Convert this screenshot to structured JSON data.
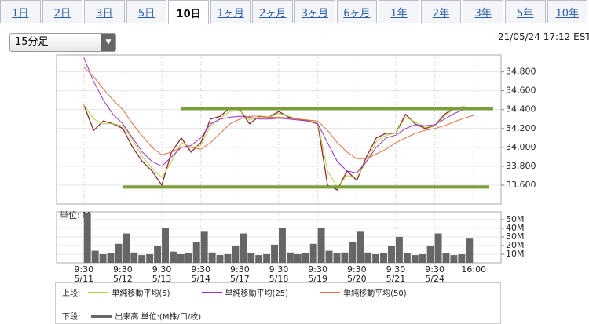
{
  "tabs": [
    "1日",
    "2日",
    "3日",
    "5日",
    "10日",
    "1ヶ月",
    "2ヶ月",
    "3ヶ月",
    "6ヶ月",
    "1年",
    "2年",
    "3年",
    "5年",
    "10年"
  ],
  "selected_tab": 4,
  "interval_select": "15分足",
  "timestamp": "21/05/24 17:12 EST",
  "legend": {
    "upper_label": "上段:",
    "lower_label": "下段:"
  },
  "chart_data": [
    {
      "type": "line",
      "x": [
        0,
        0.25,
        0.5,
        0.75,
        1,
        1.25,
        1.5,
        1.75,
        2,
        2.25,
        2.5,
        2.75,
        3,
        3.25,
        3.5,
        3.75,
        4,
        4.25,
        4.5,
        4.75,
        5,
        5.25,
        5.5,
        5.75,
        6,
        6.25,
        6.5,
        6.75,
        7,
        7.25,
        7.5,
        7.75,
        8,
        8.25,
        8.5,
        8.75,
        9,
        9.25,
        9.5,
        9.75,
        10
      ],
      "series": [
        {
          "color": "#8a2a2a",
          "values": [
            34450,
            34180,
            34280,
            34250,
            34200,
            34000,
            33850,
            33750,
            33600,
            33950,
            34100,
            33950,
            34050,
            34300,
            34330,
            34420,
            34400,
            34250,
            34330,
            34320,
            34380,
            34320,
            34300,
            34280,
            34250,
            33600,
            33550,
            33750,
            33650,
            33900,
            34100,
            34150,
            34150,
            34350,
            34250,
            34200,
            34230,
            34350,
            34420,
            34430,
            34400
          ]
        },
        {
          "name": "単純移動平均(5)",
          "color": "#b8d040",
          "values": [
            34450,
            34300,
            34250,
            34250,
            34230,
            34080,
            33900,
            33780,
            33680,
            33850,
            34050,
            34000,
            34020,
            34230,
            34310,
            34380,
            34390,
            34290,
            34320,
            34320,
            34360,
            34330,
            34300,
            34290,
            34260,
            33750,
            33580,
            33700,
            33680,
            33850,
            34060,
            34130,
            34150,
            34320,
            34270,
            34210,
            34230,
            34330,
            34410,
            34430,
            34410
          ]
        },
        {
          "name": "単純移動平均(25)",
          "color": "#9933cc",
          "values": [
            34950,
            34700,
            34500,
            34350,
            34250,
            34100,
            33950,
            33850,
            33800,
            33900,
            34000,
            34020,
            34100,
            34250,
            34300,
            34320,
            34330,
            34320,
            34300,
            34300,
            34310,
            34300,
            34290,
            34280,
            34250,
            34050,
            33850,
            33750,
            33730,
            33850,
            34000,
            34100,
            34130,
            34200,
            34240,
            34230,
            34240,
            34300,
            34360,
            34400,
            34410
          ]
        },
        {
          "name": "単純移動平均(50)",
          "color": "#e07040",
          "values": [
            34850,
            34750,
            34620,
            34500,
            34400,
            34250,
            34120,
            34000,
            33920,
            33950,
            34000,
            34000,
            33980,
            34050,
            34150,
            34250,
            34300,
            34330,
            34330,
            34320,
            34320,
            34310,
            34300,
            34290,
            34280,
            34180,
            34050,
            33950,
            33880,
            33880,
            33930,
            33980,
            34050,
            34100,
            34150,
            34180,
            34200,
            34230,
            34270,
            34310,
            34340
          ]
        }
      ],
      "hlines": [
        34410,
        33580
      ],
      "hline_color": "#7a9e3a",
      "xlim": [
        -0.7,
        10.7
      ],
      "ylim": [
        33400,
        34980
      ],
      "yticks": [
        {
          "value": 33600,
          "label": "33,600"
        },
        {
          "value": 33800,
          "label": "33,800"
        },
        {
          "value": 34000,
          "label": "34,000"
        },
        {
          "value": 34200,
          "label": "34,200"
        },
        {
          "value": 34400,
          "label": "34,400"
        },
        {
          "value": 34600,
          "label": "34,600"
        },
        {
          "value": 34800,
          "label": "34,800"
        }
      ],
      "xticks": [
        0,
        1,
        2,
        3,
        4,
        5,
        6,
        7,
        8,
        9,
        10
      ],
      "grid": true
    },
    {
      "type": "bar",
      "unit_label": "単位: M",
      "x": [
        0,
        0.2,
        0.4,
        0.6,
        0.8,
        1,
        1.2,
        1.4,
        1.6,
        1.8,
        2,
        2.2,
        2.4,
        2.6,
        2.8,
        3,
        3.2,
        3.4,
        3.6,
        3.8,
        4,
        4.2,
        4.4,
        4.6,
        4.8,
        5,
        5.2,
        5.4,
        5.6,
        5.8,
        6,
        6.2,
        6.4,
        6.6,
        6.8,
        7,
        7.2,
        7.4,
        7.6,
        7.8,
        8,
        8.2,
        8.4,
        8.6,
        8.8,
        9,
        9.2,
        9.4,
        9.6,
        9.8
      ],
      "series": [
        {
          "name": "出来高 単位:(M株/口/枚)",
          "color": "#666666",
          "values": [
            58,
            14,
            10,
            11,
            22,
            34,
            12,
            9,
            10,
            20,
            40,
            13,
            10,
            11,
            24,
            36,
            12,
            9,
            10,
            20,
            34,
            11,
            9,
            10,
            21,
            40,
            12,
            10,
            11,
            22,
            40,
            14,
            11,
            12,
            24,
            36,
            12,
            10,
            11,
            20,
            30,
            11,
            9,
            10,
            20,
            34,
            11,
            9,
            10,
            28
          ]
        }
      ],
      "xlim": [
        -0.7,
        10.7
      ],
      "ylim": [
        0,
        59
      ],
      "yticks": [
        {
          "value": 10,
          "label": "10M"
        },
        {
          "value": 20,
          "label": "20M"
        },
        {
          "value": 30,
          "label": "30M"
        },
        {
          "value": 40,
          "label": "40M"
        },
        {
          "value": 50,
          "label": "50M"
        }
      ],
      "xticks": [
        {
          "value": 0,
          "label": "9:30\n5/11"
        },
        {
          "value": 1,
          "label": "9:30\n5/12"
        },
        {
          "value": 2,
          "label": "9:30\n5/13"
        },
        {
          "value": 3,
          "label": "9:30\n5/14"
        },
        {
          "value": 4,
          "label": "9:30\n5/17"
        },
        {
          "value": 5,
          "label": "9:30\n5/18"
        },
        {
          "value": 6,
          "label": "9:30\n5/19"
        },
        {
          "value": 7,
          "label": "9:30\n5/20"
        },
        {
          "value": 8,
          "label": "9:30\n5/21"
        },
        {
          "value": 9,
          "label": "9:30\n5/24"
        },
        {
          "value": 10,
          "label": "16:00"
        }
      ],
      "grid": true
    }
  ]
}
